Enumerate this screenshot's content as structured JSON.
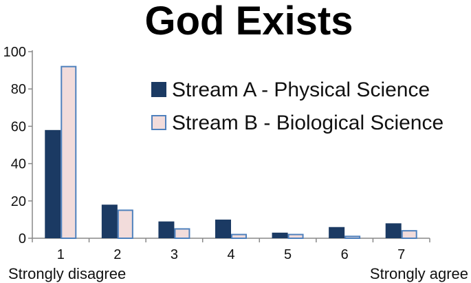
{
  "chart_data": {
    "type": "bar",
    "title": "God Exists",
    "categories": [
      "1",
      "2",
      "3",
      "4",
      "5",
      "6",
      "7"
    ],
    "series": [
      {
        "name": "Stream A - Physical Science",
        "values": [
          58,
          18,
          9,
          10,
          3,
          6,
          8
        ],
        "fill": "#1b3a63",
        "stroke": "#1b3a63"
      },
      {
        "name": "Stream B - Biological Science",
        "values": [
          92,
          15,
          5,
          2,
          2,
          1,
          4
        ],
        "fill": "#f2dcdb",
        "stroke": "#4f81bd"
      }
    ],
    "ylim": [
      0,
      100
    ],
    "yticks": [
      "0",
      "20",
      "40",
      "60",
      "80",
      "100"
    ],
    "scale_labels": {
      "left": "Strongly disagree",
      "right": "Strongly agree"
    },
    "legend_position": "top-right",
    "grid": false
  }
}
